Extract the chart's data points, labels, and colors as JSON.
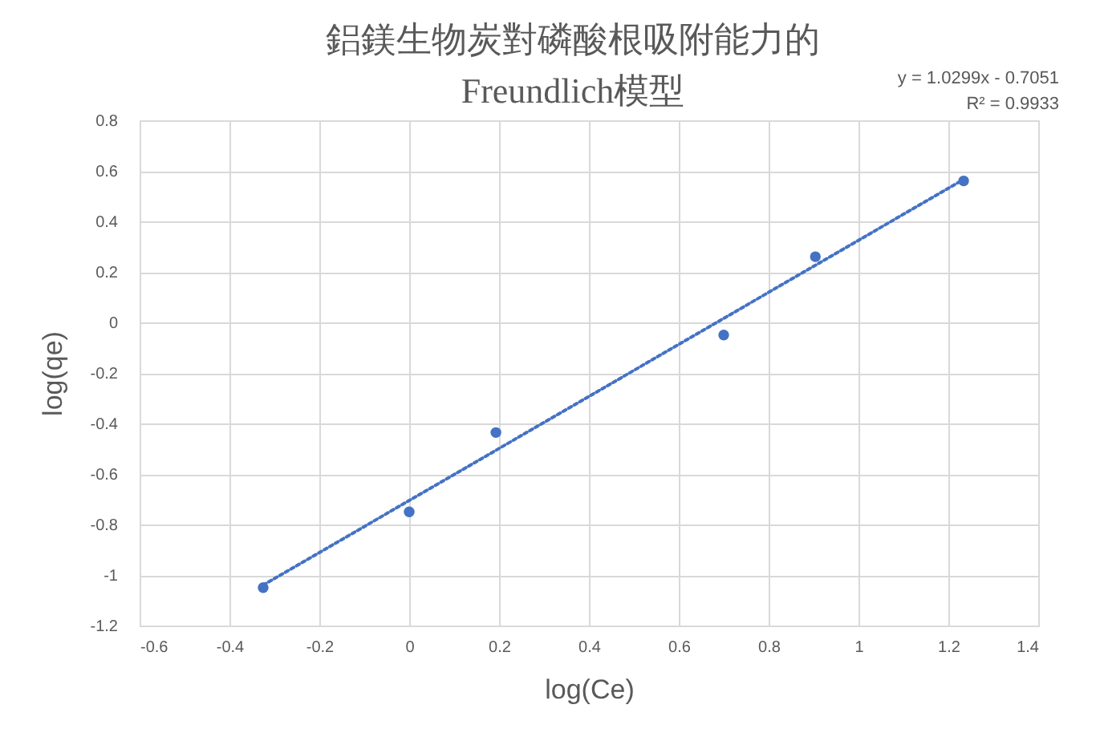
{
  "chart_data": {
    "type": "scatter",
    "title": "鋁鎂生物炭對磷酸根吸附能力的\nFreundlich模型",
    "xlabel": "log(Ce)",
    "ylabel": "log(qe)",
    "annotations": [
      "y = 1.0299x - 0.7051",
      "R² = 0.9933"
    ],
    "series": [
      {
        "type": "scatter",
        "color": "#4472c4",
        "marker": "circle",
        "x": [
          -0.325,
          0,
          0.193,
          0.7,
          0.904,
          1.234
        ],
        "values": [
          -1.05,
          -0.75,
          -0.436,
          -0.05,
          0.26,
          0.56
        ]
      },
      {
        "type": "line",
        "color": "#4472c4",
        "line_style": "dotted",
        "marker": "none",
        "x": [
          -0.325,
          1.234
        ],
        "values": [
          -1.04,
          0.566
        ]
      }
    ],
    "xlim": [
      -0.6,
      1.4
    ],
    "xticks": [
      -0.6,
      -0.4,
      -0.2,
      0,
      0.2,
      0.4,
      0.6,
      0.8,
      1,
      1.2,
      1.4
    ],
    "ylim": [
      -1.2,
      0.8
    ],
    "yticks": [
      -1.2,
      -1,
      -0.8,
      -0.6,
      -0.4,
      -0.2,
      0,
      0.2,
      0.4,
      0.6,
      0.8
    ],
    "grid": true
  }
}
